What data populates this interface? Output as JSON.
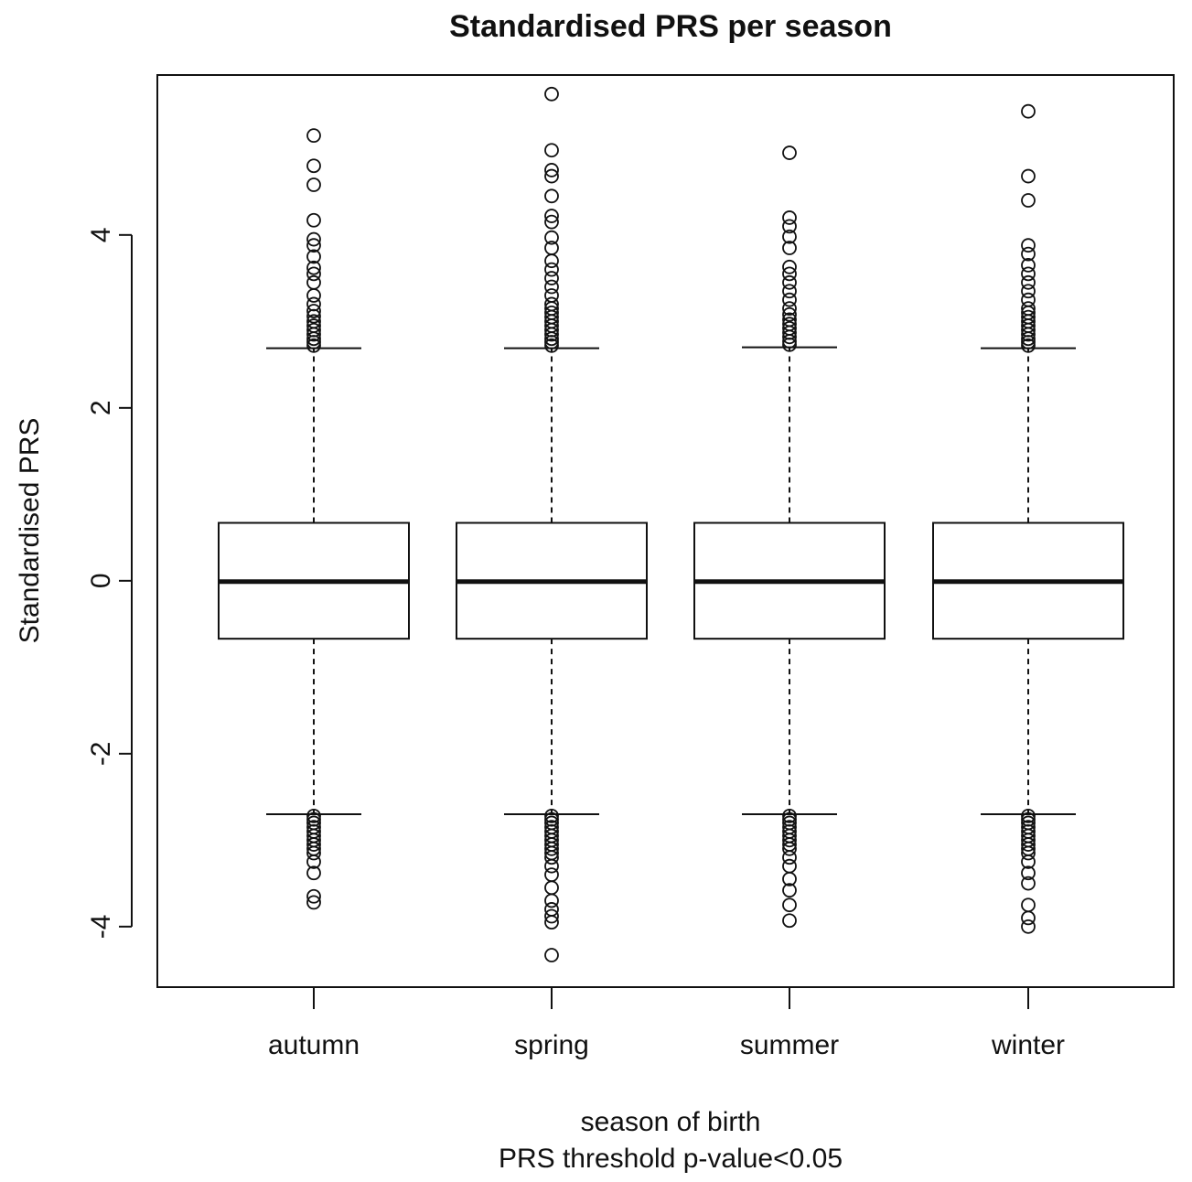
{
  "chart_data": {
    "type": "boxplot",
    "title": "Standardised PRS per season",
    "xlabel": "season of birth",
    "subtitle": "PRS threshold p-value<0.05",
    "ylabel": "Standardised PRS",
    "ylim": [
      -4.7,
      5.85
    ],
    "yticks": [
      -4,
      -2,
      0,
      2,
      4
    ],
    "ytick_labels": [
      "-4",
      "-2",
      "0",
      "2",
      "4"
    ],
    "categories": [
      "autumn",
      "spring",
      "summer",
      "winter"
    ],
    "grid": false,
    "legend": "none",
    "boxes": [
      {
        "name": "autumn",
        "whisker_low": -2.7,
        "q1": -0.67,
        "median": -0.01,
        "q3": 0.67,
        "whisker_high": 2.69,
        "outliers_high": [
          2.72,
          2.76,
          2.8,
          2.85,
          2.9,
          2.95,
          3.0,
          3.06,
          3.12,
          3.2,
          3.3,
          3.45,
          3.55,
          3.62,
          3.75,
          3.88,
          3.95,
          4.17,
          4.58,
          4.8,
          5.15
        ],
        "outliers_low": [
          -2.72,
          -2.76,
          -2.8,
          -2.85,
          -2.9,
          -2.95,
          -3.0,
          -3.05,
          -3.1,
          -3.15,
          -3.25,
          -3.38,
          -3.65,
          -3.72
        ]
      },
      {
        "name": "spring",
        "whisker_low": -2.7,
        "q1": -0.67,
        "median": -0.01,
        "q3": 0.67,
        "whisker_high": 2.69,
        "outliers_high": [
          2.72,
          2.76,
          2.8,
          2.85,
          2.9,
          2.95,
          3.0,
          3.05,
          3.1,
          3.15,
          3.2,
          3.3,
          3.4,
          3.5,
          3.6,
          3.7,
          3.85,
          3.97,
          4.15,
          4.22,
          4.45,
          4.68,
          4.75,
          4.98,
          5.63
        ],
        "outliers_low": [
          -2.72,
          -2.76,
          -2.8,
          -2.85,
          -2.9,
          -2.95,
          -3.0,
          -3.05,
          -3.1,
          -3.15,
          -3.2,
          -3.3,
          -3.4,
          -3.55,
          -3.7,
          -3.8,
          -3.88,
          -3.95,
          -4.33
        ]
      },
      {
        "name": "summer",
        "whisker_low": -2.7,
        "q1": -0.67,
        "median": -0.01,
        "q3": 0.67,
        "whisker_high": 2.7,
        "outliers_high": [
          2.73,
          2.77,
          2.82,
          2.87,
          2.92,
          2.97,
          3.02,
          3.08,
          3.15,
          3.25,
          3.35,
          3.45,
          3.55,
          3.63,
          3.85,
          3.98,
          4.1,
          4.2,
          4.95
        ],
        "outliers_low": [
          -2.72,
          -2.76,
          -2.8,
          -2.85,
          -2.9,
          -2.95,
          -3.0,
          -3.05,
          -3.1,
          -3.2,
          -3.3,
          -3.45,
          -3.58,
          -3.75,
          -3.93
        ]
      },
      {
        "name": "winter",
        "whisker_low": -2.7,
        "q1": -0.67,
        "median": -0.01,
        "q3": 0.67,
        "whisker_high": 2.69,
        "outliers_high": [
          2.72,
          2.76,
          2.8,
          2.85,
          2.9,
          2.95,
          3.0,
          3.05,
          3.1,
          3.15,
          3.25,
          3.35,
          3.45,
          3.55,
          3.65,
          3.78,
          3.88,
          4.4,
          4.68,
          5.43
        ],
        "outliers_low": [
          -2.72,
          -2.76,
          -2.8,
          -2.85,
          -2.9,
          -2.95,
          -3.0,
          -3.05,
          -3.1,
          -3.15,
          -3.25,
          -3.38,
          -3.5,
          -3.75,
          -3.9,
          -4.0
        ]
      }
    ]
  }
}
